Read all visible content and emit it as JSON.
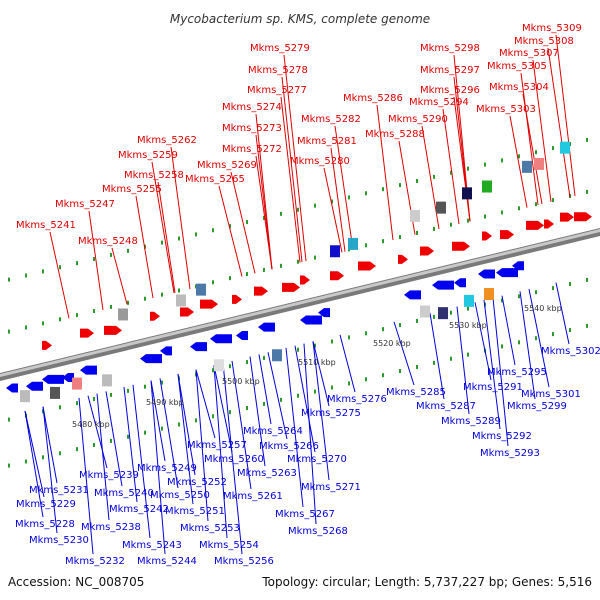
{
  "title": "Mycobacterium sp. KMS, complete genome",
  "footer": {
    "accession": "Accession: NC_008705",
    "topology": "Topology: circular; Length: 5,737,227 bp; Genes: 5,516"
  },
  "scale_ticks": [
    "5480 kbp",
    "5490 kbp",
    "5500 kbp",
    "5510 kbp",
    "5520 kbp",
    "5530 kbp",
    "5540 kbp"
  ],
  "colors": {
    "top_strand": "#ee0000",
    "bottom_strand": "#0000ee",
    "backbone": "#888888"
  },
  "top_labels": [
    "Mkms_5309",
    "Mkms_5308",
    "Mkms_5307",
    "Mkms_5305",
    "Mkms_5304",
    "Mkms_5303",
    "Mkms_5298",
    "Mkms_5297",
    "Mkms_5296",
    "Mkms_5294",
    "Mkms_5290",
    "Mkms_5288",
    "Mkms_5286",
    "Mkms_5279",
    "Mkms_5278",
    "Mkms_5277",
    "Mkms_5282",
    "Mkms_5274",
    "Mkms_5273",
    "Mkms_5281",
    "Mkms_5272",
    "Mkms_5280",
    "Mkms_5262",
    "Mkms_5259",
    "Mkms_5269",
    "Mkms_5258",
    "Mkms_5265",
    "Mkms_5255",
    "Mkms_5247",
    "Mkms_5241",
    "Mkms_5248"
  ],
  "bottom_labels": [
    "Mkms_5302",
    "Mkms_5295",
    "Mkms_5301",
    "Mkms_5291",
    "Mkms_5299",
    "Mkms_5285",
    "Mkms_5287",
    "Mkms_5289",
    "Mkms_5292",
    "Mkms_5293",
    "Mkms_5276",
    "Mkms_5275",
    "Mkms_5264",
    "Mkms_5257",
    "Mkms_5266",
    "Mkms_5260",
    "Mkms_5270",
    "Mkms_5249",
    "Mkms_5263",
    "Mkms_5239",
    "Mkms_5252",
    "Mkms_5271",
    "Mkms_5240",
    "Mkms_5231",
    "Mkms_5250",
    "Mkms_5261",
    "Mkms_5229",
    "Mkms_5242",
    "Mkms_5251",
    "Mkms_5267",
    "Mkms_5238",
    "Mkms_5228",
    "Mkms_5253",
    "Mkms_5268",
    "Mkms_5230",
    "Mkms_5243",
    "Mkms_5254",
    "Mkms_5232",
    "Mkms_5244",
    "Mkms_5256"
  ]
}
